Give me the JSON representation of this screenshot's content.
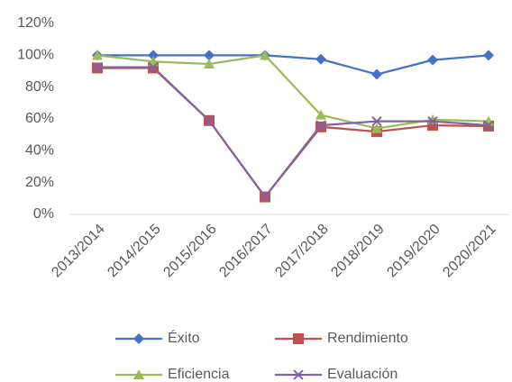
{
  "chart_data": {
    "type": "line",
    "categories": [
      "2013/2014",
      "2014/2015",
      "2015/2016",
      "2016/2017",
      "2017/2018",
      "2018/2019",
      "2019/2020",
      "2020/2021"
    ],
    "series": [
      {
        "name": "Éxito",
        "color": "#4472c4",
        "marker": "diamond",
        "values": [
          100,
          100,
          100,
          100,
          97.5,
          88,
          97,
          100
        ]
      },
      {
        "name": "Rendimiento",
        "color": "#c0504d",
        "marker": "square",
        "values": [
          92,
          92,
          59,
          11,
          55,
          52,
          56,
          55.5
        ]
      },
      {
        "name": "Eficiencia",
        "color": "#9bbb59",
        "marker": "triangle",
        "values": [
          100,
          96,
          94.5,
          100,
          62.5,
          54,
          59.5,
          58.5
        ]
      },
      {
        "name": "Evaluación",
        "color": "#8064a2",
        "marker": "x",
        "values": [
          92.5,
          92.5,
          59,
          11,
          56,
          58.5,
          58.5,
          56
        ]
      }
    ],
    "ylim": [
      0,
      120
    ],
    "yticks": [
      {
        "value": 0,
        "label": "0%"
      },
      {
        "value": 20,
        "label": "20%"
      },
      {
        "value": 40,
        "label": "40%"
      },
      {
        "value": 60,
        "label": "60%"
      },
      {
        "value": 80,
        "label": "80%"
      },
      {
        "value": 100,
        "label": "100%"
      },
      {
        "value": 120,
        "label": "120%"
      }
    ],
    "grid": false,
    "legend": "bottom"
  }
}
